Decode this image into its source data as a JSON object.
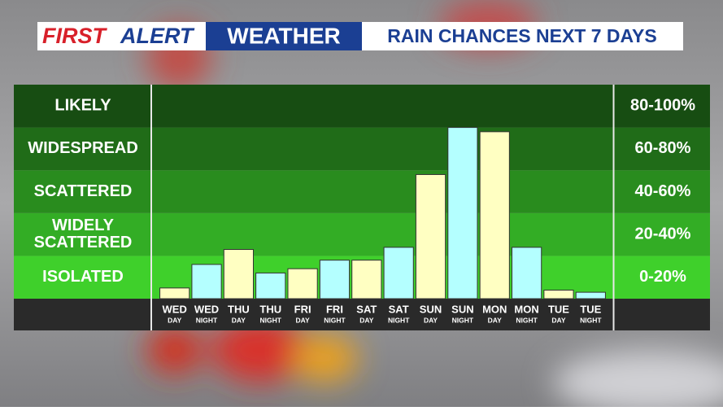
{
  "chart_data": {
    "type": "bar",
    "header": {
      "first": "FIRST",
      "alert": "ALERT",
      "weather": "WEATHER"
    },
    "title": "RAIN CHANCES NEXT 7 DAYS",
    "categories": [
      "WED",
      "WED",
      "THU",
      "THU",
      "FRI",
      "FRI",
      "SAT",
      "SAT",
      "SUN",
      "SUN",
      "MON",
      "MON",
      "TUE",
      "TUE"
    ],
    "periods": [
      "DAY",
      "NIGHT",
      "DAY",
      "NIGHT",
      "DAY",
      "NIGHT",
      "DAY",
      "NIGHT",
      "DAY",
      "NIGHT",
      "DAY",
      "NIGHT",
      "DAY",
      "NIGHT"
    ],
    "values": [
      5,
      16,
      23,
      12,
      14,
      18,
      18,
      24,
      58,
      80,
      78,
      24,
      4,
      3
    ],
    "colors": [
      "#ffffc2",
      "#b4ffff",
      "#ffffc2",
      "#b4ffff",
      "#ffffc2",
      "#b4ffff",
      "#ffffc2",
      "#b4ffff",
      "#ffffc2",
      "#b4ffff",
      "#ffffc2",
      "#b4ffff",
      "#ffffc2",
      "#b4ffff"
    ],
    "ylim": [
      0,
      100
    ],
    "bands": [
      {
        "label": [
          "ISOLATED"
        ],
        "range": "0-20%",
        "from": 0,
        "to": 20,
        "color": "#3fd02b"
      },
      {
        "label": [
          "WIDELY",
          "SCATTERED"
        ],
        "range": "20-40%",
        "from": 20,
        "to": 40,
        "color": "#33ad25"
      },
      {
        "label": [
          "SCATTERED"
        ],
        "range": "40-60%",
        "from": 40,
        "to": 60,
        "color": "#298c1e"
      },
      {
        "label": [
          "WIDESPREAD"
        ],
        "range": "60-80%",
        "from": 60,
        "to": 80,
        "color": "#206c18"
      },
      {
        "label": [
          "LIKELY"
        ],
        "range": "80-100%",
        "from": 80,
        "to": 100,
        "color": "#174d12"
      }
    ]
  }
}
